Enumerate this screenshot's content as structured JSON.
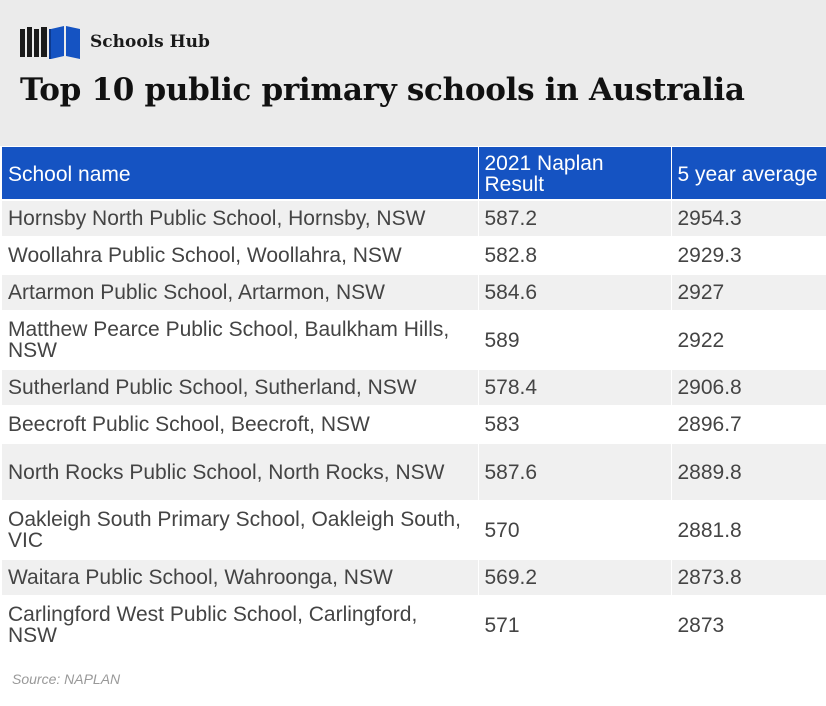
{
  "brand": {
    "name": "Schools Hub",
    "logo_icon": "books-icon",
    "logo_color": "#1553c2"
  },
  "title": "Top 10 public primary schools in Australia",
  "chart_data": {
    "type": "table",
    "title": "Top 10 public primary schools in Australia",
    "columns": [
      "School name",
      "2021 Naplan Result",
      "5 year average"
    ],
    "rows": [
      [
        "Hornsby North Public School, Hornsby, NSW",
        "587.2",
        "2954.3"
      ],
      [
        "Woollahra Public School, Woollahra, NSW",
        "582.8",
        "2929.3"
      ],
      [
        "Artarmon Public School, Artarmon, NSW",
        "584.6",
        "2927"
      ],
      [
        "Matthew Pearce Public School, Baulkham Hills, NSW",
        "589",
        "2922"
      ],
      [
        "Sutherland Public School, Sutherland, NSW",
        "578.4",
        "2906.8"
      ],
      [
        "Beecroft Public School, Beecroft, NSW",
        "583",
        "2896.7"
      ],
      [
        "North Rocks Public School, North Rocks, NSW",
        "587.6",
        "2889.8"
      ],
      [
        "Oakleigh South Primary School, Oakleigh South, VIC",
        "570",
        "2881.8"
      ],
      [
        "Waitara Public School, Wahroonga, NSW",
        "569.2",
        "2873.8"
      ],
      [
        "Carlingford West Public School, Carlingford, NSW",
        "571",
        "2873"
      ]
    ],
    "header_color": "#1553c2"
  },
  "source": "Source: NAPLAN"
}
